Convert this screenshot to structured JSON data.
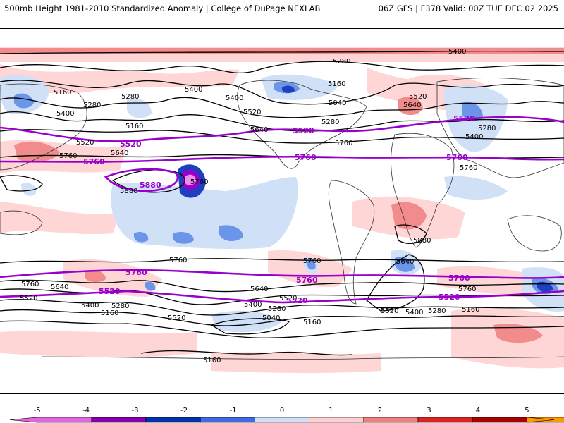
{
  "header": {
    "title": "500mb Height 1981-2010 Standardized Anomaly | College of DuPage NEXLAB",
    "run_info": "06Z GFS | F378 Valid: 00Z TUE DEC 02 2025"
  },
  "contours": {
    "black": [
      {
        "label": "5400",
        "text": "5400"
      },
      {
        "label": "5280",
        "text": "5280"
      },
      {
        "label": "5160",
        "text": "5160"
      },
      {
        "label": "5040",
        "text": "5040"
      },
      {
        "label": "5640",
        "text": "5640"
      },
      {
        "label": "5760",
        "text": "5760"
      },
      {
        "label": "5880",
        "text": "5880"
      },
      {
        "label": "5520",
        "text": "5520"
      }
    ],
    "purple": [
      "5520",
      "5760",
      "5880"
    ]
  },
  "labels": {
    "n5400_top": "5400",
    "n5280_a": "5280",
    "n5280_b": "5280",
    "n5280_c": "5280",
    "n5160_a": "5160",
    "n5160_b": "5160",
    "n5160_c": "5160",
    "n5400_a": "5400",
    "n5400_b": "5400",
    "n5400_c": "5400",
    "n5520_a": "5520",
    "n5520_b": "5520",
    "n5520_c": "5520",
    "n5640_a": "5640",
    "n5640_b": "5640",
    "n5640_c": "5640",
    "n5040_a": "5040",
    "n5760_a": "5760",
    "n5760_b": "5760",
    "n5760_c": "5760",
    "n5880_a": "5880",
    "n5880_b": "5880",
    "n5280_d": "5280",
    "n5400_d": "5400",
    "n5400_e": "5400",
    "s5760_a": "5760",
    "s5640_a": "5640",
    "s5520_a": "5520",
    "s5400_a": "5400",
    "s5280_a": "5280",
    "s5160_a": "5160",
    "s5760_b": "5760",
    "s5640_b": "5640",
    "s5520_b": "5520",
    "s5400_b": "5400",
    "s5280_b": "5280",
    "s5160_b": "5160",
    "s5040_a": "5040",
    "s5160_c": "5160",
    "s5760_c": "5760",
    "s5640_c": "5640",
    "s5760_d": "5760",
    "s5520_c": "5520",
    "s5400_c": "5400",
    "s5280_c": "5280",
    "s5160_d": "5160",
    "s5160_e": "5160",
    "p5520_a": "5520",
    "p5520_b": "5520",
    "p5520_c": "5520",
    "p5520_d": "5520",
    "p5760_a": "5760",
    "p5760_b": "5760",
    "p5760_c": "5760",
    "p5880": "5880",
    "ps5760_a": "5760",
    "ps5760_b": "5760",
    "ps5760_c": "5760",
    "ps5520_a": "5520",
    "ps5520_b": "5520",
    "ps5520_c": "5520"
  },
  "colorbar": {
    "ticks": [
      "-5",
      "-4",
      "-3",
      "-2",
      "-1",
      "0",
      "1",
      "2",
      "3",
      "4",
      "5"
    ],
    "colors": [
      "#e066e0",
      "#8800aa",
      "#0033aa",
      "#4169e1",
      "#cfe0f7",
      "#ffffff",
      "#ffd0d0",
      "#f08080",
      "#dd2222",
      "#aa0000",
      "#ff9900"
    ]
  }
}
